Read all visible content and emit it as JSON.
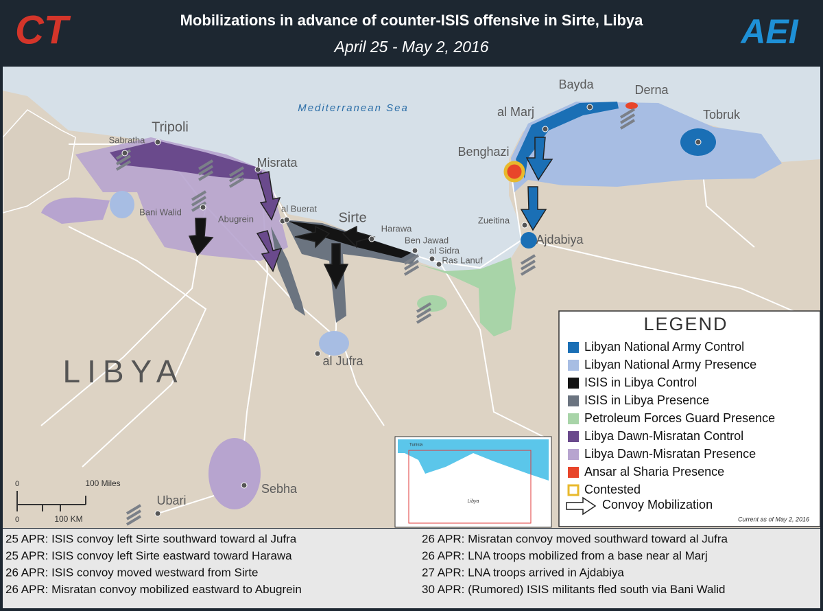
{
  "header": {
    "logo_left": "CT",
    "title": "Mobilizations in advance of counter-ISIS offensive in Sirte, Libya",
    "subtitle": "April 25 - May 2, 2016",
    "logo_right": "AEI"
  },
  "map": {
    "sea": "Mediterranean Sea",
    "country": "LIBYA",
    "cities": [
      "Tripoli",
      "Sabratha",
      "Misrata",
      "Bani Walid",
      "Abugrein",
      "al Buerat",
      "Sirte",
      "Harawa",
      "Ben Jawad",
      "al Sidra",
      "Ras Lanuf",
      "Benghazi",
      "al Marj",
      "Bayda",
      "Derna",
      "Tobruk",
      "Zueitina",
      "Ajdabiya",
      "al Jufra",
      "Sebha",
      "Ubari"
    ],
    "scale": {
      "miles_zero": "0",
      "miles": "100 Miles",
      "km_zero": "0",
      "km": "100 KM"
    }
  },
  "legend": {
    "title": "LEGEND",
    "items": [
      {
        "label": "Libyan National Army Control",
        "color": "#1a6fb5"
      },
      {
        "label": "Libyan National Army Presence",
        "color": "#a7bde3"
      },
      {
        "label": "ISIS in Libya Control",
        "color": "#141414"
      },
      {
        "label": "ISIS in Libya Presence",
        "color": "#6b7480"
      },
      {
        "label": "Petroleum Forces Guard Presence",
        "color": "#a8d4a8"
      },
      {
        "label": "Libya Dawn-Misratan Control",
        "color": "#6a4a8c"
      },
      {
        "label": "Libya Dawn-Misratan Presence",
        "color": "#b7a4cf"
      },
      {
        "label": "Ansar al Sharia Presence",
        "color": "#e8452a"
      },
      {
        "label": "Contested",
        "border_color": "#e8b92c"
      },
      {
        "label": "Convoy Mobilization"
      }
    ]
  },
  "inset": {
    "country_top": "Tunisia",
    "country": "Libya",
    "note": "Current as of May 2, 2016"
  },
  "events": [
    "25 APR: ISIS convoy left Sirte southward toward al Jufra",
    "25 APR: ISIS convoy left Sirte eastward toward Harawa",
    "26 APR: ISIS convoy moved westward from Sirte",
    "26 APR: Misratan convoy mobilized eastward to Abugrein",
    "26 APR: Misratan convoy moved southward toward al Jufra",
    "26 APR: LNA troops mobilized from a base near al Marj",
    "27 APR: LNA troops arrived in Ajdabiya",
    "30 APR: (Rumored) ISIS militants fled south via Bani Walid"
  ]
}
